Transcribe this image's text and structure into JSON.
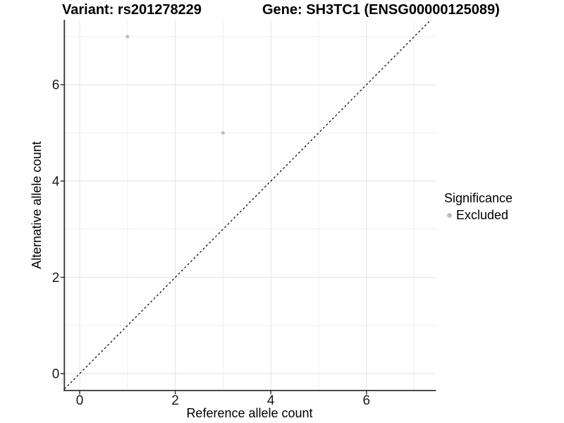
{
  "header": {
    "title_left": "Variant: rs201278229",
    "title_right": "Gene: SH3TC1 (ENSG00000125089)"
  },
  "legend": {
    "title": "Significance",
    "entries": [
      {
        "label": "Excluded",
        "color": "#bdbdbd"
      }
    ]
  },
  "chart_data": {
    "type": "scatter",
    "title": "Variant: rs201278229   Gene: SH3TC1 (ENSG00000125089)",
    "xlabel": "Reference allele count",
    "ylabel": "Alternative allele count",
    "xlim": [
      -0.32,
      7.44
    ],
    "ylim": [
      -0.35,
      7.35
    ],
    "x_ticks": [
      0,
      2,
      4,
      6
    ],
    "y_ticks": [
      0,
      2,
      4,
      6
    ],
    "x_minor_ticks": [
      1,
      3,
      5,
      7
    ],
    "y_minor_ticks": [
      1,
      3,
      5,
      7
    ],
    "grid": true,
    "legend_position": "right",
    "series": [
      {
        "name": "Excluded",
        "color": "#bdbdbd",
        "points": [
          [
            1,
            7
          ],
          [
            3,
            5
          ]
        ]
      }
    ],
    "reference_line": {
      "type": "identity",
      "slope": 1,
      "intercept": 0,
      "style": "dashed",
      "color": "#000000"
    },
    "colors": {
      "background": "#ffffff",
      "grid_major": "#e3e3e3",
      "grid_minor": "#efefef",
      "axis_line": "#333333",
      "tick_label": "#1a1a1a",
      "point": "#bdbdbd"
    }
  }
}
